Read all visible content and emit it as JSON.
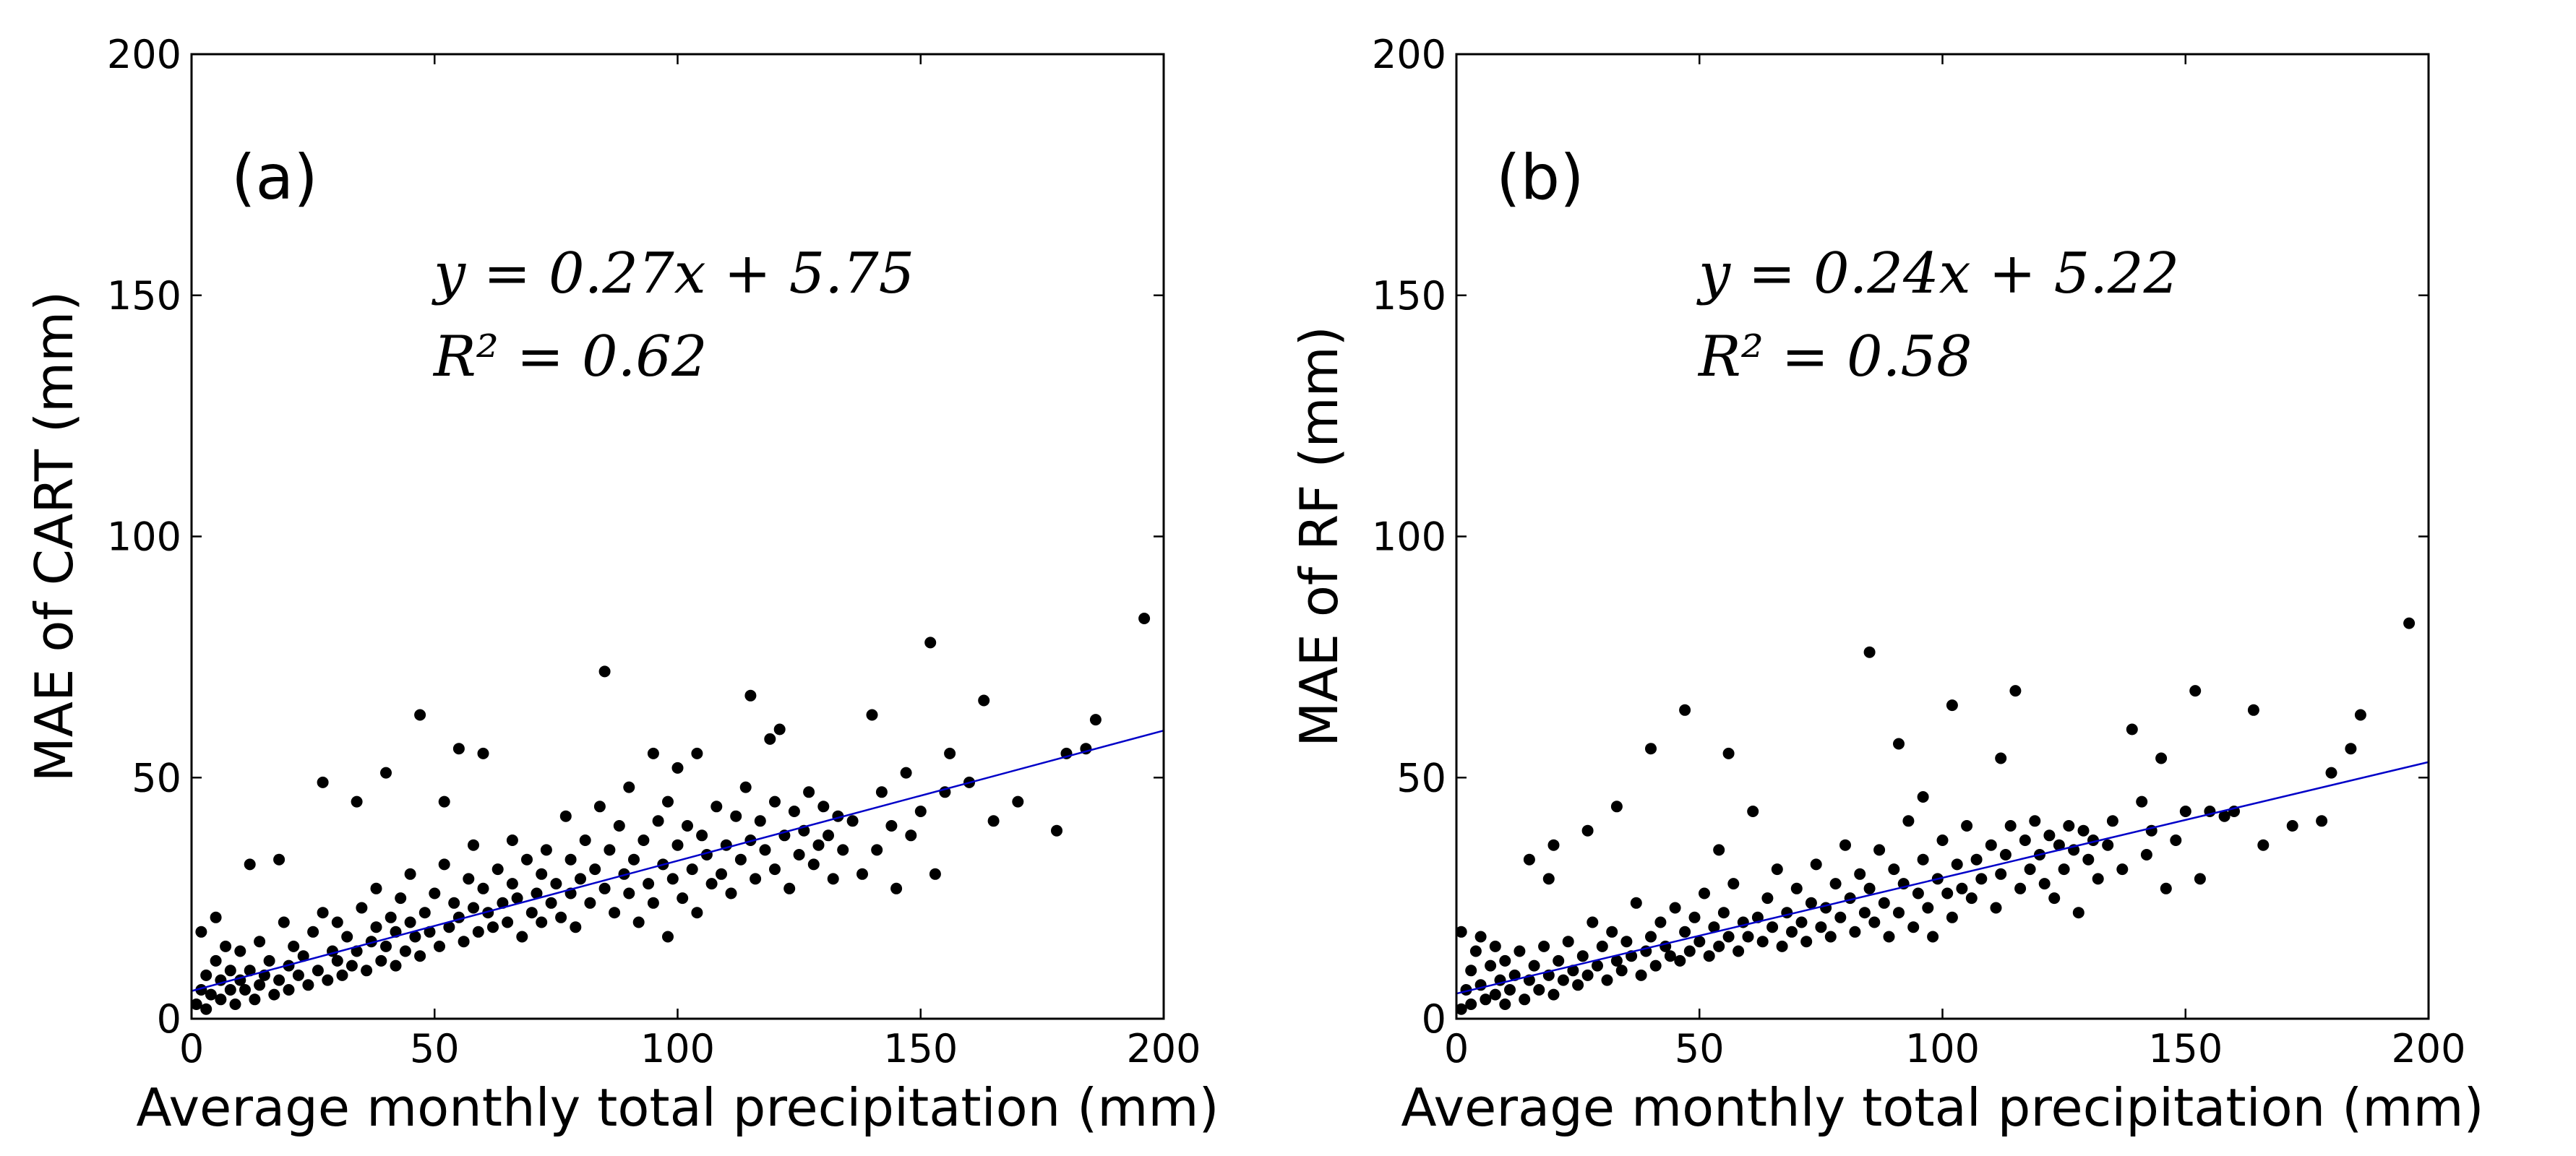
{
  "chart_data": [
    {
      "type": "scatter",
      "panel_label": "(a)",
      "xlabel": "Average monthly total precipitation (mm)",
      "ylabel": "MAE of CART (mm)",
      "xlim": [
        0,
        200
      ],
      "ylim": [
        0,
        200
      ],
      "xticks": [
        0,
        50,
        100,
        150,
        200
      ],
      "yticks": [
        0,
        50,
        100,
        150,
        200
      ],
      "xtick_labels": [
        "0",
        "50",
        "100",
        "150",
        "200"
      ],
      "ytick_labels": [
        "0",
        "50",
        "100",
        "150",
        "200"
      ],
      "equation": "y = 0.27x + 5.75",
      "r2": "R² = 0.62",
      "fit": {
        "slope": 0.27,
        "intercept": 5.75,
        "x_range": [
          0,
          200
        ]
      },
      "points": [
        [
          1,
          3
        ],
        [
          2,
          6
        ],
        [
          2,
          18
        ],
        [
          3,
          2
        ],
        [
          3,
          9
        ],
        [
          4,
          5
        ],
        [
          5,
          21
        ],
        [
          5,
          12
        ],
        [
          6,
          4
        ],
        [
          6,
          8
        ],
        [
          7,
          15
        ],
        [
          8,
          6
        ],
        [
          8,
          10
        ],
        [
          9,
          3
        ],
        [
          10,
          8
        ],
        [
          10,
          14
        ],
        [
          11,
          6
        ],
        [
          12,
          32
        ],
        [
          12,
          10
        ],
        [
          13,
          4
        ],
        [
          14,
          7
        ],
        [
          14,
          16
        ],
        [
          15,
          9
        ],
        [
          16,
          12
        ],
        [
          17,
          5
        ],
        [
          18,
          33
        ],
        [
          18,
          8
        ],
        [
          19,
          20
        ],
        [
          20,
          6
        ],
        [
          20,
          11
        ],
        [
          21,
          15
        ],
        [
          22,
          9
        ],
        [
          23,
          13
        ],
        [
          24,
          7
        ],
        [
          25,
          18
        ],
        [
          26,
          10
        ],
        [
          27,
          22
        ],
        [
          27,
          49
        ],
        [
          28,
          8
        ],
        [
          29,
          14
        ],
        [
          30,
          12
        ],
        [
          30,
          20
        ],
        [
          31,
          9
        ],
        [
          32,
          17
        ],
        [
          33,
          11
        ],
        [
          34,
          45
        ],
        [
          34,
          14
        ],
        [
          35,
          23
        ],
        [
          36,
          10
        ],
        [
          37,
          16
        ],
        [
          38,
          19
        ],
        [
          38,
          27
        ],
        [
          39,
          12
        ],
        [
          40,
          51
        ],
        [
          40,
          15
        ],
        [
          41,
          21
        ],
        [
          42,
          18
        ],
        [
          42,
          11
        ],
        [
          43,
          25
        ],
        [
          44,
          14
        ],
        [
          45,
          20
        ],
        [
          45,
          30
        ],
        [
          46,
          17
        ],
        [
          47,
          13
        ],
        [
          47,
          63
        ],
        [
          48,
          22
        ],
        [
          49,
          18
        ],
        [
          50,
          26
        ],
        [
          51,
          15
        ],
        [
          52,
          45
        ],
        [
          52,
          32
        ],
        [
          53,
          19
        ],
        [
          54,
          24
        ],
        [
          55,
          56
        ],
        [
          55,
          21
        ],
        [
          56,
          16
        ],
        [
          57,
          29
        ],
        [
          58,
          23
        ],
        [
          58,
          36
        ],
        [
          59,
          18
        ],
        [
          60,
          55
        ],
        [
          60,
          27
        ],
        [
          61,
          22
        ],
        [
          62,
          19
        ],
        [
          63,
          31
        ],
        [
          64,
          24
        ],
        [
          65,
          20
        ],
        [
          66,
          37
        ],
        [
          66,
          28
        ],
        [
          67,
          25
        ],
        [
          68,
          17
        ],
        [
          69,
          33
        ],
        [
          70,
          22
        ],
        [
          71,
          26
        ],
        [
          72,
          30
        ],
        [
          72,
          20
        ],
        [
          73,
          35
        ],
        [
          74,
          24
        ],
        [
          75,
          28
        ],
        [
          76,
          21
        ],
        [
          77,
          42
        ],
        [
          78,
          26
        ],
        [
          78,
          33
        ],
        [
          79,
          19
        ],
        [
          80,
          29
        ],
        [
          81,
          37
        ],
        [
          82,
          24
        ],
        [
          83,
          31
        ],
        [
          84,
          44
        ],
        [
          85,
          72
        ],
        [
          85,
          27
        ],
        [
          86,
          35
        ],
        [
          87,
          22
        ],
        [
          88,
          40
        ],
        [
          89,
          30
        ],
        [
          90,
          26
        ],
        [
          90,
          48
        ],
        [
          91,
          33
        ],
        [
          92,
          20
        ],
        [
          93,
          37
        ],
        [
          94,
          28
        ],
        [
          95,
          55
        ],
        [
          95,
          24
        ],
        [
          96,
          41
        ],
        [
          97,
          32
        ],
        [
          98,
          17
        ],
        [
          98,
          45
        ],
        [
          99,
          29
        ],
        [
          100,
          52
        ],
        [
          100,
          36
        ],
        [
          101,
          25
        ],
        [
          102,
          40
        ],
        [
          103,
          31
        ],
        [
          104,
          55
        ],
        [
          104,
          22
        ],
        [
          105,
          38
        ],
        [
          106,
          34
        ],
        [
          107,
          28
        ],
        [
          108,
          44
        ],
        [
          109,
          30
        ],
        [
          110,
          36
        ],
        [
          111,
          26
        ],
        [
          112,
          42
        ],
        [
          113,
          33
        ],
        [
          114,
          48
        ],
        [
          115,
          67
        ],
        [
          115,
          37
        ],
        [
          116,
          29
        ],
        [
          117,
          41
        ],
        [
          118,
          35
        ],
        [
          119,
          58
        ],
        [
          120,
          31
        ],
        [
          120,
          45
        ],
        [
          121,
          60
        ],
        [
          122,
          38
        ],
        [
          123,
          27
        ],
        [
          124,
          43
        ],
        [
          125,
          34
        ],
        [
          126,
          39
        ],
        [
          127,
          47
        ],
        [
          128,
          32
        ],
        [
          129,
          36
        ],
        [
          130,
          44
        ],
        [
          131,
          38
        ],
        [
          132,
          29
        ],
        [
          133,
          42
        ],
        [
          134,
          35
        ],
        [
          136,
          41
        ],
        [
          138,
          30
        ],
        [
          140,
          63
        ],
        [
          141,
          35
        ],
        [
          142,
          47
        ],
        [
          144,
          40
        ],
        [
          145,
          27
        ],
        [
          147,
          51
        ],
        [
          148,
          38
        ],
        [
          150,
          43
        ],
        [
          152,
          78
        ],
        [
          153,
          30
        ],
        [
          155,
          47
        ],
        [
          156,
          55
        ],
        [
          160,
          49
        ],
        [
          163,
          66
        ],
        [
          165,
          41
        ],
        [
          170,
          45
        ],
        [
          178,
          39
        ],
        [
          180,
          55
        ],
        [
          184,
          56
        ],
        [
          186,
          62
        ],
        [
          196,
          83
        ]
      ]
    },
    {
      "type": "scatter",
      "panel_label": "(b)",
      "xlabel": "Average monthly total precipitation (mm)",
      "ylabel": "MAE of RF (mm)",
      "xlim": [
        0,
        200
      ],
      "ylim": [
        0,
        200
      ],
      "xticks": [
        0,
        50,
        100,
        150,
        200
      ],
      "yticks": [
        0,
        50,
        100,
        150,
        200
      ],
      "xtick_labels": [
        "0",
        "50",
        "100",
        "150",
        "200"
      ],
      "ytick_labels": [
        "0",
        "50",
        "100",
        "150",
        "200"
      ],
      "equation": "y = 0.24x + 5.22",
      "r2": "R² = 0.58",
      "fit": {
        "slope": 0.24,
        "intercept": 5.22,
        "x_range": [
          0,
          200
        ]
      },
      "points": [
        [
          1,
          2
        ],
        [
          1,
          18
        ],
        [
          2,
          6
        ],
        [
          3,
          10
        ],
        [
          3,
          3
        ],
        [
          4,
          14
        ],
        [
          5,
          7
        ],
        [
          5,
          17
        ],
        [
          6,
          4
        ],
        [
          7,
          11
        ],
        [
          8,
          5
        ],
        [
          8,
          15
        ],
        [
          9,
          8
        ],
        [
          10,
          3
        ],
        [
          10,
          12
        ],
        [
          11,
          6
        ],
        [
          12,
          9
        ],
        [
          13,
          14
        ],
        [
          14,
          4
        ],
        [
          15,
          33
        ],
        [
          15,
          8
        ],
        [
          16,
          11
        ],
        [
          17,
          6
        ],
        [
          18,
          15
        ],
        [
          19,
          9
        ],
        [
          19,
          29
        ],
        [
          20,
          36
        ],
        [
          20,
          5
        ],
        [
          21,
          12
        ],
        [
          22,
          8
        ],
        [
          23,
          16
        ],
        [
          24,
          10
        ],
        [
          25,
          7
        ],
        [
          26,
          13
        ],
        [
          27,
          39
        ],
        [
          27,
          9
        ],
        [
          28,
          20
        ],
        [
          29,
          11
        ],
        [
          30,
          15
        ],
        [
          31,
          8
        ],
        [
          32,
          18
        ],
        [
          33,
          44
        ],
        [
          33,
          12
        ],
        [
          34,
          10
        ],
        [
          35,
          16
        ],
        [
          36,
          13
        ],
        [
          37,
          24
        ],
        [
          38,
          9
        ],
        [
          39,
          14
        ],
        [
          40,
          56
        ],
        [
          40,
          17
        ],
        [
          41,
          11
        ],
        [
          42,
          20
        ],
        [
          43,
          15
        ],
        [
          44,
          13
        ],
        [
          45,
          23
        ],
        [
          46,
          12
        ],
        [
          47,
          64
        ],
        [
          47,
          18
        ],
        [
          48,
          14
        ],
        [
          49,
          21
        ],
        [
          50,
          16
        ],
        [
          51,
          26
        ],
        [
          52,
          13
        ],
        [
          53,
          19
        ],
        [
          54,
          35
        ],
        [
          54,
          15
        ],
        [
          55,
          22
        ],
        [
          56,
          55
        ],
        [
          56,
          17
        ],
        [
          57,
          28
        ],
        [
          58,
          14
        ],
        [
          59,
          20
        ],
        [
          60,
          17
        ],
        [
          61,
          43
        ],
        [
          62,
          21
        ],
        [
          63,
          16
        ],
        [
          64,
          25
        ],
        [
          65,
          19
        ],
        [
          66,
          31
        ],
        [
          67,
          15
        ],
        [
          68,
          22
        ],
        [
          69,
          18
        ],
        [
          70,
          27
        ],
        [
          71,
          20
        ],
        [
          72,
          16
        ],
        [
          73,
          24
        ],
        [
          74,
          32
        ],
        [
          75,
          19
        ],
        [
          76,
          23
        ],
        [
          77,
          17
        ],
        [
          78,
          28
        ],
        [
          79,
          21
        ],
        [
          80,
          36
        ],
        [
          81,
          25
        ],
        [
          82,
          18
        ],
        [
          83,
          30
        ],
        [
          84,
          22
        ],
        [
          85,
          76
        ],
        [
          85,
          27
        ],
        [
          86,
          20
        ],
        [
          87,
          35
        ],
        [
          88,
          24
        ],
        [
          89,
          17
        ],
        [
          90,
          31
        ],
        [
          91,
          57
        ],
        [
          91,
          22
        ],
        [
          92,
          28
        ],
        [
          93,
          41
        ],
        [
          94,
          19
        ],
        [
          95,
          26
        ],
        [
          96,
          46
        ],
        [
          96,
          33
        ],
        [
          97,
          23
        ],
        [
          98,
          17
        ],
        [
          99,
          29
        ],
        [
          100,
          37
        ],
        [
          101,
          26
        ],
        [
          102,
          65
        ],
        [
          102,
          21
        ],
        [
          103,
          32
        ],
        [
          104,
          27
        ],
        [
          105,
          40
        ],
        [
          106,
          25
        ],
        [
          107,
          33
        ],
        [
          108,
          29
        ],
        [
          110,
          36
        ],
        [
          111,
          23
        ],
        [
          112,
          54
        ],
        [
          112,
          30
        ],
        [
          113,
          34
        ],
        [
          114,
          40
        ],
        [
          115,
          68
        ],
        [
          116,
          27
        ],
        [
          117,
          37
        ],
        [
          118,
          31
        ],
        [
          119,
          41
        ],
        [
          120,
          34
        ],
        [
          121,
          28
        ],
        [
          122,
          38
        ],
        [
          123,
          25
        ],
        [
          124,
          36
        ],
        [
          125,
          31
        ],
        [
          126,
          40
        ],
        [
          127,
          35
        ],
        [
          128,
          22
        ],
        [
          129,
          39
        ],
        [
          130,
          33
        ],
        [
          131,
          37
        ],
        [
          132,
          29
        ],
        [
          134,
          36
        ],
        [
          135,
          41
        ],
        [
          137,
          31
        ],
        [
          139,
          60
        ],
        [
          141,
          45
        ],
        [
          142,
          34
        ],
        [
          143,
          39
        ],
        [
          145,
          54
        ],
        [
          146,
          27
        ],
        [
          148,
          37
        ],
        [
          150,
          43
        ],
        [
          152,
          68
        ],
        [
          153,
          29
        ],
        [
          155,
          43
        ],
        [
          158,
          42
        ],
        [
          160,
          43
        ],
        [
          164,
          64
        ],
        [
          166,
          36
        ],
        [
          172,
          40
        ],
        [
          178,
          41
        ],
        [
          180,
          51
        ],
        [
          184,
          56
        ],
        [
          186,
          63
        ],
        [
          196,
          82
        ]
      ]
    }
  ]
}
